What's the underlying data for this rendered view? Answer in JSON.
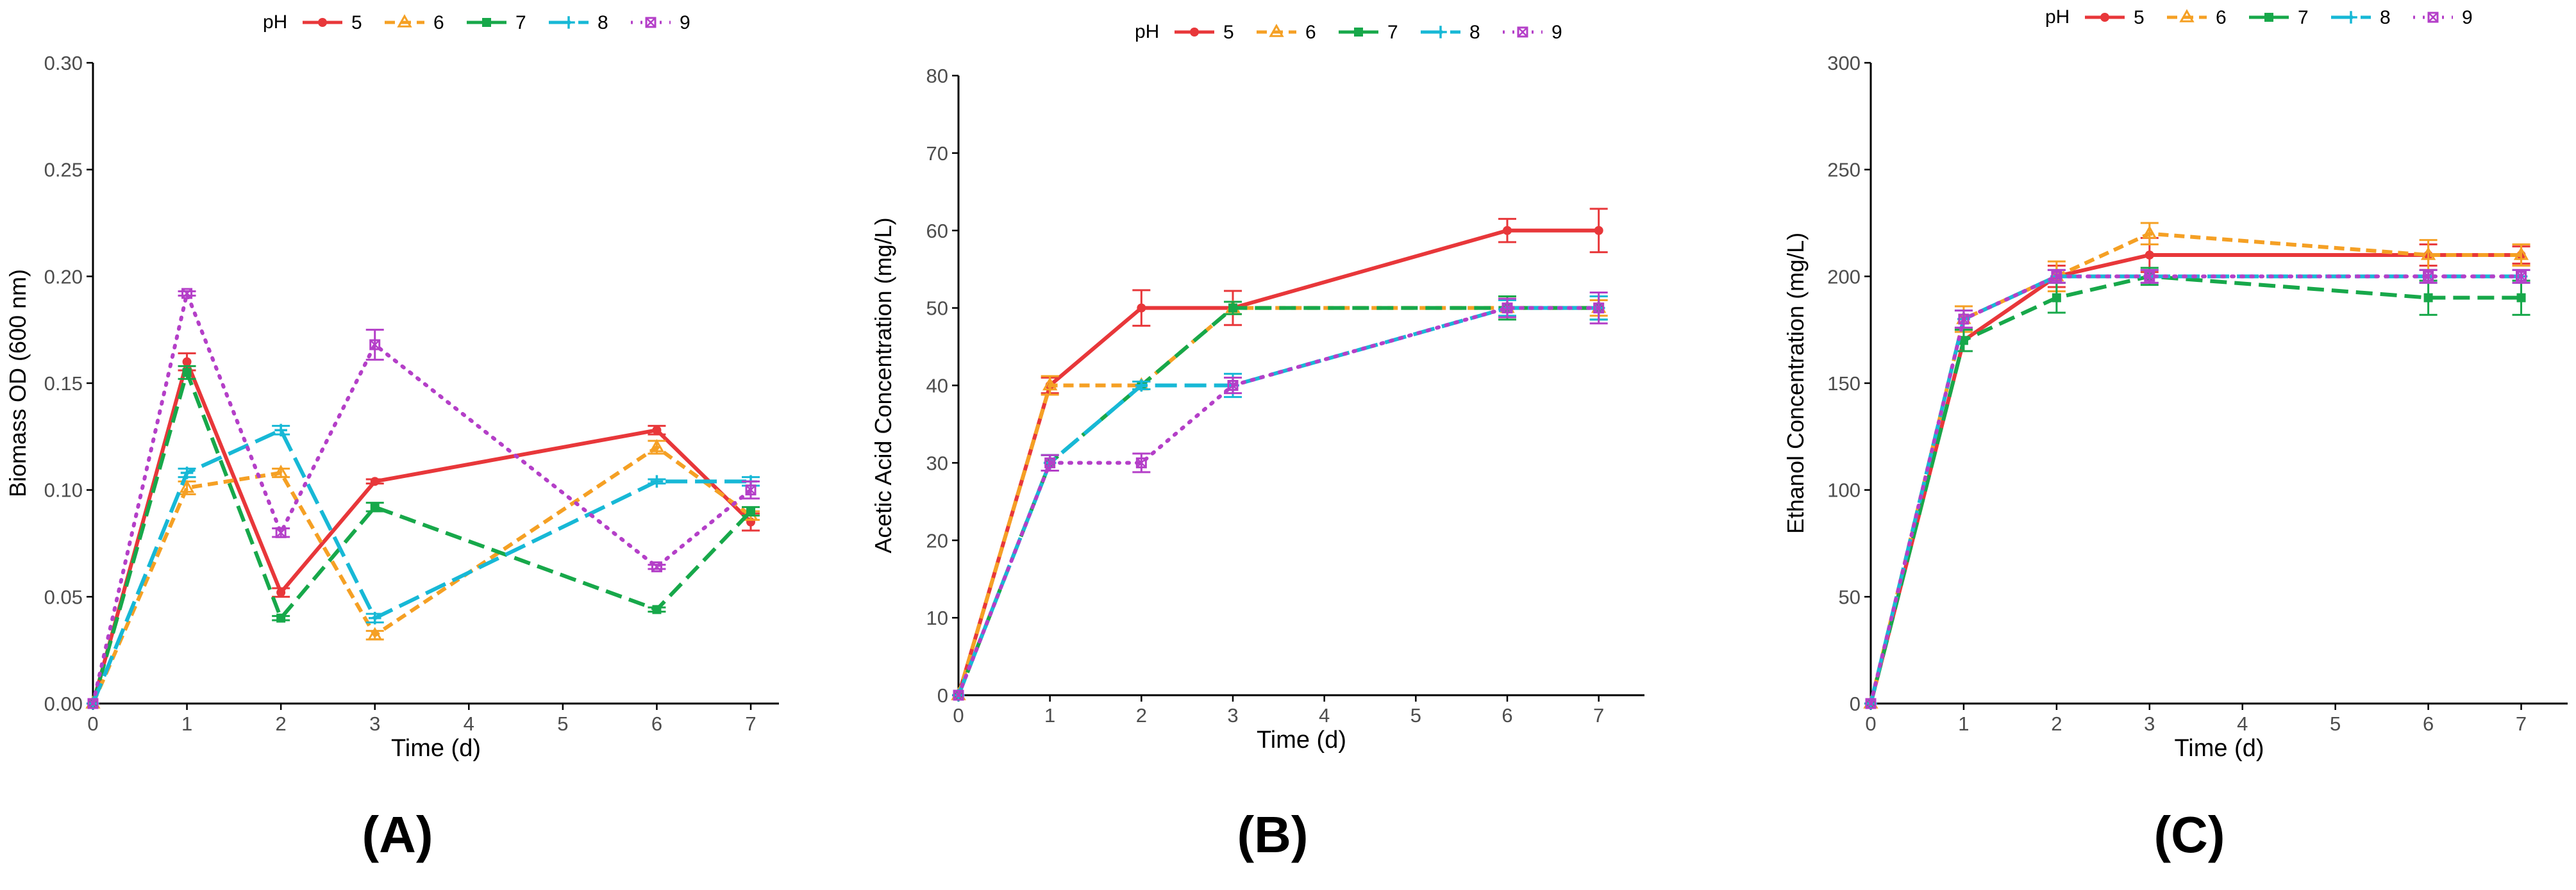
{
  "legend_title": "pH",
  "colors": {
    "pH5": "#e8373a",
    "pH6": "#f5a024",
    "pH7": "#17a84a",
    "pH8": "#17b8d6",
    "pH9": "#b43fc8",
    "axis": "#000000",
    "tick_text": "#4d4d4d"
  },
  "chart_data": [
    {
      "id": "A",
      "panel_label": "(A)",
      "type": "line",
      "title": "",
      "xlabel": "Time (d)",
      "ylabel": "Biomass OD (600 nm)",
      "xlim": [
        0,
        7.3
      ],
      "ylim": [
        0,
        0.3
      ],
      "x_ticks": [
        0,
        1,
        2,
        3,
        4,
        5,
        6,
        7
      ],
      "x_tick_labels": [
        "0",
        "1",
        "2",
        "3",
        "4",
        "5",
        "6",
        "7"
      ],
      "y_ticks": [
        0,
        0.05,
        0.1,
        0.15,
        0.2,
        0.25,
        0.3
      ],
      "y_tick_labels": [
        "0.00",
        "0.05",
        "0.10",
        "0.15",
        "0.20",
        "0.25",
        "0.30"
      ],
      "legend": {
        "position": "top",
        "title": "pH",
        "entries": [
          "5",
          "6",
          "7",
          "8",
          "9"
        ]
      },
      "grid": false,
      "x": [
        0,
        1,
        2,
        3,
        6,
        7
      ],
      "series": [
        {
          "name": "5",
          "color_key": "pH5",
          "dash": "solid",
          "marker": "circle",
          "values": [
            0,
            0.16,
            0.052,
            0.104,
            0.128,
            0.085
          ],
          "errors": [
            0,
            0.004,
            0.002,
            0.001,
            0.002,
            0.004
          ]
        },
        {
          "name": "6",
          "color_key": "pH6",
          "dash": "dash",
          "marker": "triangle",
          "values": [
            0,
            0.101,
            0.108,
            0.032,
            0.12,
            0.088
          ],
          "errors": [
            0,
            0.003,
            0.002,
            0.002,
            0.003,
            0.002
          ]
        },
        {
          "name": "7",
          "color_key": "pH7",
          "dash": "longdash",
          "marker": "square",
          "values": [
            0,
            0.155,
            0.04,
            0.092,
            0.044,
            0.09
          ],
          "errors": [
            0,
            0.003,
            0.001,
            0.002,
            0.001,
            0.002
          ]
        },
        {
          "name": "8",
          "color_key": "pH8",
          "dash": "longerdash",
          "marker": "plus",
          "values": [
            0,
            0.108,
            0.128,
            0.04,
            0.104,
            0.104
          ],
          "errors": [
            0,
            0.002,
            0.002,
            0.002,
            0.001,
            0.002
          ]
        },
        {
          "name": "9",
          "color_key": "pH9",
          "dash": "dot",
          "marker": "squarex",
          "values": [
            0,
            0.192,
            0.08,
            0.168,
            0.064,
            0.1
          ],
          "errors": [
            0,
            0.001,
            0.002,
            0.007,
            0.001,
            0.004
          ]
        }
      ]
    },
    {
      "id": "B",
      "panel_label": "(B)",
      "type": "line",
      "title": "",
      "xlabel": "Time (d)",
      "ylabel": "Acetic Acid Concentration (mg/L)",
      "xlim": [
        0,
        7.5
      ],
      "ylim": [
        0,
        80
      ],
      "x_ticks": [
        0,
        1,
        2,
        3,
        4,
        5,
        6,
        7
      ],
      "x_tick_labels": [
        "0",
        "1",
        "2",
        "3",
        "4",
        "5",
        "6",
        "7"
      ],
      "y_ticks": [
        0,
        10,
        20,
        30,
        40,
        50,
        60,
        70,
        80
      ],
      "y_tick_labels": [
        "0",
        "10",
        "20",
        "30",
        "40",
        "50",
        "60",
        "70",
        "80"
      ],
      "legend": {
        "position": "top",
        "title": "pH",
        "entries": [
          "5",
          "6",
          "7",
          "8",
          "9"
        ]
      },
      "grid": false,
      "x": [
        0,
        1,
        2,
        3,
        6,
        7
      ],
      "series": [
        {
          "name": "5",
          "color_key": "pH5",
          "dash": "solid",
          "marker": "circle",
          "values": [
            0,
            40,
            50,
            50,
            60,
            60
          ],
          "errors": [
            0,
            1,
            2.3,
            2.2,
            1.5,
            2.8
          ]
        },
        {
          "name": "6",
          "color_key": "pH6",
          "dash": "dash",
          "marker": "triangle",
          "values": [
            0,
            40,
            40,
            50,
            50,
            50
          ],
          "errors": [
            0,
            1.2,
            0.5,
            0.8,
            1.2,
            1.0
          ]
        },
        {
          "name": "7",
          "color_key": "pH7",
          "dash": "longdash",
          "marker": "square",
          "values": [
            0,
            30,
            40,
            50,
            50,
            50
          ],
          "errors": [
            0,
            1,
            0.5,
            0.8,
            1.5,
            1.5
          ]
        },
        {
          "name": "8",
          "color_key": "pH8",
          "dash": "longerdash",
          "marker": "plus",
          "values": [
            0,
            30,
            40,
            40,
            50,
            50
          ],
          "errors": [
            0,
            1,
            0.5,
            1.5,
            1.0,
            1.5
          ]
        },
        {
          "name": "9",
          "color_key": "pH9",
          "dash": "dot",
          "marker": "squarex",
          "values": [
            0,
            30,
            30,
            40,
            50,
            50
          ],
          "errors": [
            0,
            1,
            1.2,
            1.0,
            1.2,
            2.0
          ]
        }
      ]
    },
    {
      "id": "C",
      "panel_label": "(C)",
      "type": "line",
      "title": "",
      "xlabel": "Time (d)",
      "ylabel": "Ethanol Concentration (mg/L)",
      "xlim": [
        0,
        7.5
      ],
      "ylim": [
        0,
        300
      ],
      "x_ticks": [
        0,
        1,
        2,
        3,
        4,
        5,
        6,
        7
      ],
      "x_tick_labels": [
        "0",
        "1",
        "2",
        "3",
        "4",
        "5",
        "6",
        "7"
      ],
      "y_ticks": [
        0,
        50,
        100,
        150,
        200,
        250,
        300
      ],
      "y_tick_labels": [
        "0",
        "50",
        "100",
        "150",
        "200",
        "250",
        "300"
      ],
      "legend": {
        "position": "top",
        "title": "pH",
        "entries": [
          "5",
          "6",
          "7",
          "8",
          "9"
        ]
      },
      "grid": false,
      "x": [
        0,
        1,
        2,
        3,
        6,
        7
      ],
      "series": [
        {
          "name": "5",
          "color_key": "pH5",
          "dash": "solid",
          "marker": "circle",
          "values": [
            0,
            170,
            200,
            210,
            210,
            210
          ],
          "errors": [
            0,
            5,
            5,
            8,
            5,
            4
          ]
        },
        {
          "name": "6",
          "color_key": "pH6",
          "dash": "dash",
          "marker": "triangle",
          "values": [
            0,
            180,
            200,
            220,
            210,
            210
          ],
          "errors": [
            0,
            6,
            7,
            5,
            7,
            5
          ]
        },
        {
          "name": "7",
          "color_key": "pH7",
          "dash": "longdash",
          "marker": "square",
          "values": [
            0,
            170,
            190,
            200,
            190,
            190
          ],
          "errors": [
            0,
            5,
            7,
            4,
            8,
            8
          ]
        },
        {
          "name": "8",
          "color_key": "pH8",
          "dash": "longerdash",
          "marker": "plus",
          "values": [
            0,
            180,
            200,
            200,
            200,
            200
          ],
          "errors": [
            0,
            4,
            3,
            3,
            3,
            3
          ]
        },
        {
          "name": "9",
          "color_key": "pH9",
          "dash": "dot",
          "marker": "squarex",
          "values": [
            0,
            180,
            200,
            200,
            200,
            200
          ],
          "errors": [
            0,
            4,
            3,
            3,
            3,
            3
          ]
        }
      ]
    }
  ]
}
